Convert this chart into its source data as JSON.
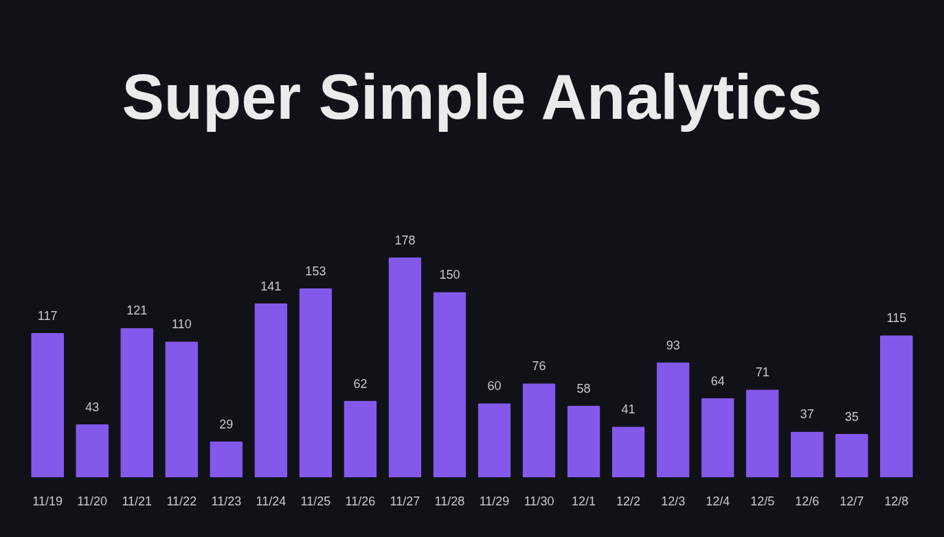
{
  "chart_data": {
    "type": "bar",
    "title": "Super Simple Analytics",
    "categories": [
      "11/19",
      "11/20",
      "11/21",
      "11/22",
      "11/23",
      "11/24",
      "11/25",
      "11/26",
      "11/27",
      "11/28",
      "11/29",
      "11/30",
      "12/1",
      "12/2",
      "12/3",
      "12/4",
      "12/5",
      "12/6",
      "12/7",
      "12/8"
    ],
    "values": [
      117,
      43,
      121,
      110,
      29,
      141,
      153,
      62,
      178,
      150,
      60,
      76,
      58,
      41,
      93,
      64,
      71,
      37,
      35,
      115
    ],
    "color": "#8359ec",
    "data_labels": true
  }
}
